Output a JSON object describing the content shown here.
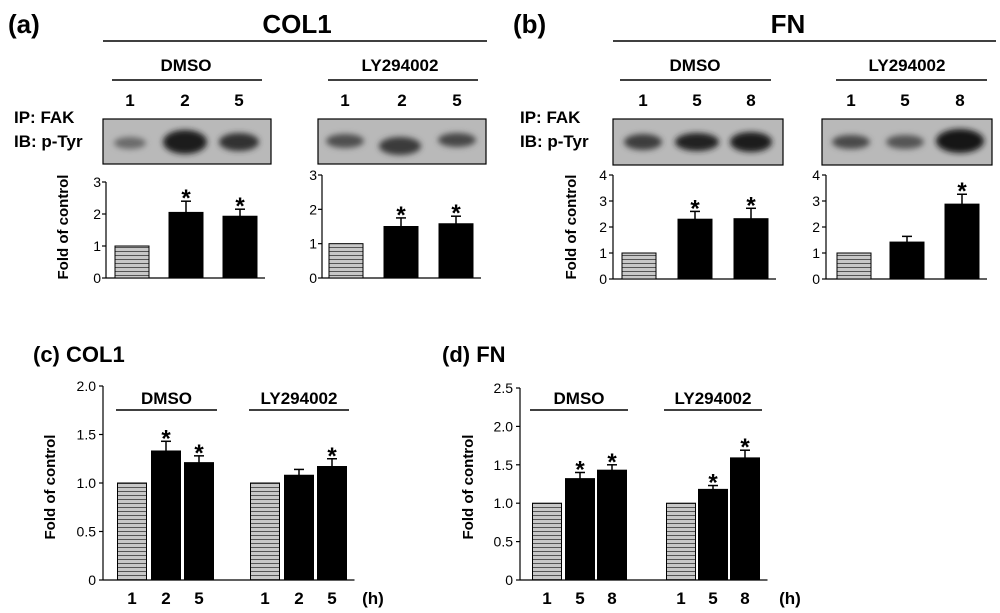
{
  "panels": {
    "a": {
      "label": "(a)",
      "title": "COL1",
      "groups": [
        {
          "name": "DMSO",
          "lanes": [
            "1",
            "2",
            "5"
          ]
        },
        {
          "name": "LY294002",
          "lanes": [
            "1",
            "2",
            "5"
          ]
        }
      ],
      "row_labels": [
        "IP: FAK",
        "IB: p-Tyr"
      ]
    },
    "b": {
      "label": "(b)",
      "title": "FN",
      "groups": [
        {
          "name": "DMSO",
          "lanes": [
            "1",
            "5",
            "8"
          ]
        },
        {
          "name": "LY294002",
          "lanes": [
            "1",
            "5",
            "8"
          ]
        }
      ],
      "row_labels": [
        "IP: FAK",
        "IB: p-Tyr"
      ]
    },
    "c": {
      "label": "(c) COL1"
    },
    "d": {
      "label": "(d) FN"
    }
  },
  "colors": {
    "control_fill": "#c8c8c8",
    "treated_fill": "#000000",
    "blot_bg": "#b9b9b9"
  },
  "chart_data": [
    {
      "id": "a-dmso",
      "type": "bar",
      "ylabel": "Fold of control",
      "categories": [
        "1",
        "2",
        "5"
      ],
      "values": [
        1.0,
        2.05,
        1.93
      ],
      "errors": [
        0,
        0.35,
        0.22
      ],
      "significant": [
        false,
        true,
        true
      ],
      "ylim": [
        0,
        3
      ],
      "yticks": [
        0,
        1,
        2,
        3
      ],
      "tick_labels": [
        "0",
        "1",
        "2",
        "3"
      ]
    },
    {
      "id": "a-ly",
      "type": "bar",
      "ylabel": "",
      "categories": [
        "1",
        "2",
        "5"
      ],
      "values": [
        1.0,
        1.5,
        1.58
      ],
      "errors": [
        0,
        0.25,
        0.22
      ],
      "significant": [
        false,
        true,
        true
      ],
      "ylim": [
        0,
        3
      ],
      "yticks": [
        0,
        1,
        2,
        3
      ],
      "tick_labels": [
        "0",
        "1",
        "2",
        "3"
      ]
    },
    {
      "id": "b-dmso",
      "type": "bar",
      "ylabel": "Fold of control",
      "categories": [
        "1",
        "5",
        "8"
      ],
      "values": [
        1.0,
        2.3,
        2.32
      ],
      "errors": [
        0,
        0.3,
        0.4
      ],
      "significant": [
        false,
        true,
        true
      ],
      "ylim": [
        0,
        4
      ],
      "yticks": [
        0,
        1,
        2,
        3,
        4
      ],
      "tick_labels": [
        "0",
        "1",
        "2",
        "3",
        "4"
      ]
    },
    {
      "id": "b-ly",
      "type": "bar",
      "ylabel": "",
      "categories": [
        "1",
        "5",
        "8"
      ],
      "values": [
        1.0,
        1.42,
        2.88
      ],
      "errors": [
        0,
        0.22,
        0.38
      ],
      "significant": [
        false,
        false,
        true
      ],
      "ylim": [
        0,
        4
      ],
      "yticks": [
        0,
        1,
        2,
        3,
        4
      ],
      "tick_labels": [
        "0",
        "1",
        "2",
        "3",
        "4"
      ]
    },
    {
      "id": "c",
      "type": "bar",
      "title": "(c) COL1",
      "ylabel": "Fold of control",
      "xunit": "(h)",
      "groups": [
        "DMSO",
        "LY294002"
      ],
      "categories": [
        "1",
        "2",
        "5",
        "1",
        "2",
        "5"
      ],
      "values": [
        1.0,
        1.33,
        1.21,
        1.0,
        1.08,
        1.17
      ],
      "errors": [
        0,
        0.1,
        0.07,
        0,
        0.06,
        0.08
      ],
      "significant": [
        false,
        true,
        true,
        false,
        false,
        true
      ],
      "ylim": [
        0,
        2.0
      ],
      "yticks": [
        0,
        0.5,
        1.0,
        1.5,
        2.0
      ],
      "tick_labels": [
        "0",
        "0.5",
        "1.0",
        "1.5",
        "2.0"
      ]
    },
    {
      "id": "d",
      "type": "bar",
      "title": "(d) FN",
      "ylabel": "Fold of control",
      "xunit": "(h)",
      "groups": [
        "DMSO",
        "LY294002"
      ],
      "categories": [
        "1",
        "5",
        "8",
        "1",
        "5",
        "8"
      ],
      "values": [
        1.0,
        1.32,
        1.43,
        1.0,
        1.18,
        1.59
      ],
      "errors": [
        0,
        0.08,
        0.07,
        0,
        0.05,
        0.1
      ],
      "significant": [
        false,
        true,
        true,
        false,
        true,
        true
      ],
      "ylim": [
        0,
        2.5
      ],
      "yticks": [
        0,
        0.5,
        1.0,
        1.5,
        2.0,
        2.5
      ],
      "tick_labels": [
        "0",
        "0.5",
        "1.0",
        "1.5",
        "2.0",
        "2.5"
      ]
    }
  ]
}
